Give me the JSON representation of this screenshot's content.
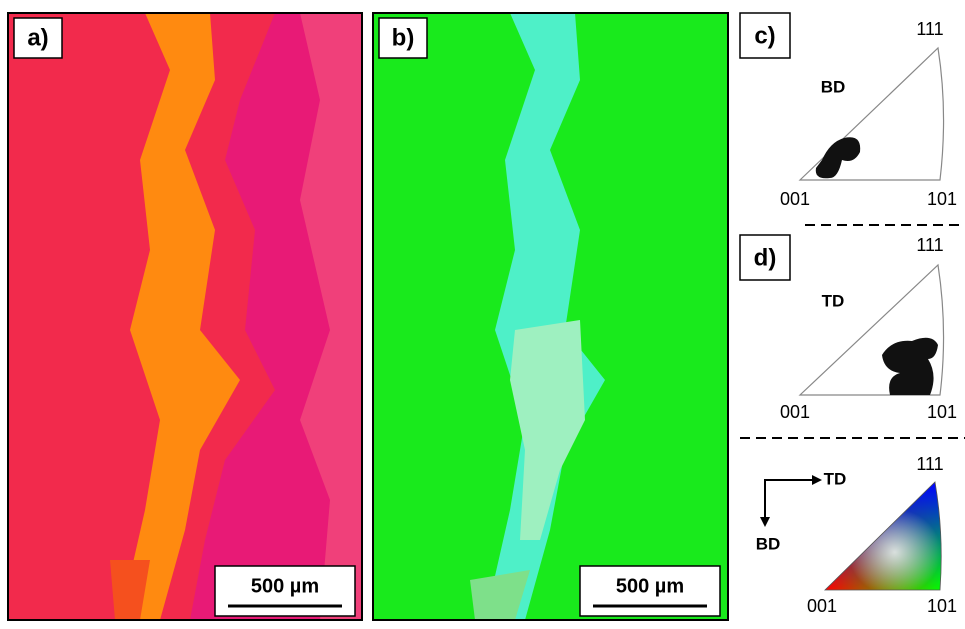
{
  "panels": [
    {
      "label": "a)",
      "scale_bar": "500 µm"
    },
    {
      "label": "b)",
      "scale_bar": "500 µm"
    }
  ],
  "pole_figures": [
    {
      "label": "c)",
      "direction": "BD",
      "corners": [
        "001",
        "101",
        "111"
      ]
    },
    {
      "label": "d)",
      "direction": "TD",
      "corners": [
        "001",
        "101",
        "111"
      ]
    }
  ],
  "color_key": {
    "corners": [
      "001",
      "101",
      "111"
    ],
    "axes": [
      "TD",
      "BD"
    ]
  }
}
